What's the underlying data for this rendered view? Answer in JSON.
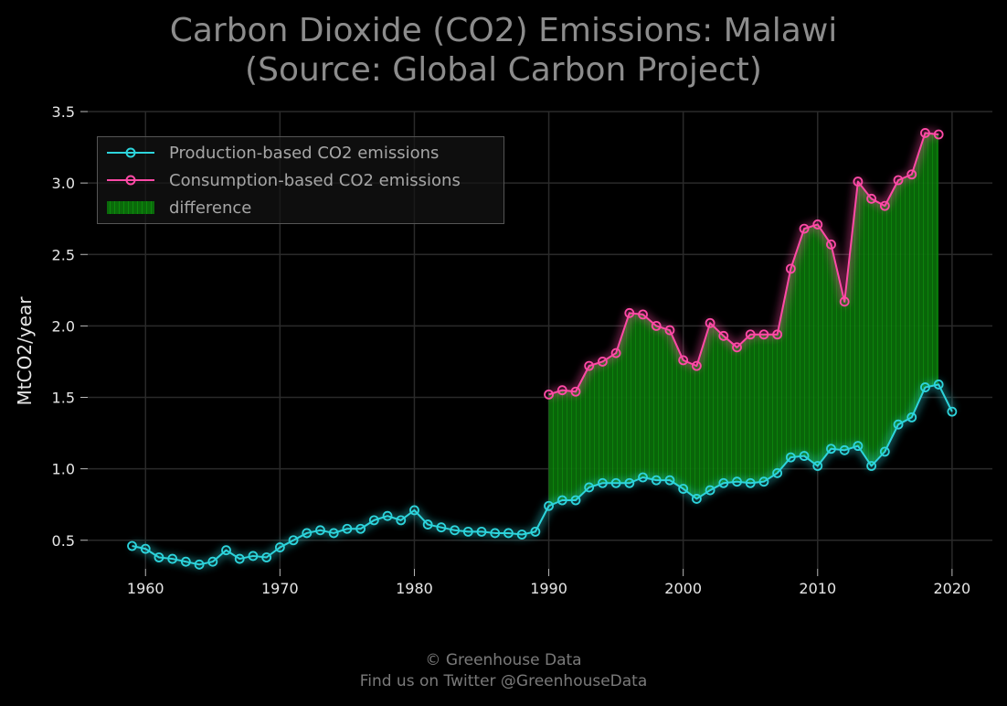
{
  "title_line1": "Carbon Dioxide (CO2) Emissions: Malawi",
  "title_line2": "(Source: Global Carbon Project)",
  "footer_line1": "© Greenhouse Data",
  "footer_line2": "Find us on Twitter @GreenhouseData",
  "colors": {
    "production": "#2dd4dc",
    "consumption": "#ff4aa6",
    "difference": "#0a7a0a",
    "grid": "#2a2a2a",
    "text": "#e6e6e6"
  },
  "legend": {
    "production": "Production-based CO2 emissions",
    "consumption": "Consumption-based CO2 emissions",
    "difference": "difference"
  },
  "chart_data": {
    "type": "line",
    "xlabel": "",
    "ylabel": "MtCO2/year",
    "xlim": [
      1955.7,
      2023
    ],
    "ylim": [
      0.3,
      3.5
    ],
    "xticks": [
      1960,
      1970,
      1980,
      1990,
      2000,
      2010,
      2020
    ],
    "yticks": [
      0.5,
      1.0,
      1.5,
      2.0,
      2.5,
      3.0,
      3.5
    ],
    "ytick_labels": [
      "0.5",
      "1.0",
      "1.5",
      "2.0",
      "2.5",
      "3.0",
      "3.5"
    ],
    "grid": true,
    "legend_position": "top-left",
    "series": [
      {
        "name": "Production-based CO2 emissions",
        "x": [
          1959,
          1960,
          1961,
          1962,
          1963,
          1964,
          1965,
          1966,
          1967,
          1968,
          1969,
          1970,
          1971,
          1972,
          1973,
          1974,
          1975,
          1976,
          1977,
          1978,
          1979,
          1980,
          1981,
          1982,
          1983,
          1984,
          1985,
          1986,
          1987,
          1988,
          1989,
          1990,
          1991,
          1992,
          1993,
          1994,
          1995,
          1996,
          1997,
          1998,
          1999,
          2000,
          2001,
          2002,
          2003,
          2004,
          2005,
          2006,
          2007,
          2008,
          2009,
          2010,
          2011,
          2012,
          2013,
          2014,
          2015,
          2016,
          2017,
          2018,
          2019,
          2020
        ],
        "values": [
          0.46,
          0.44,
          0.38,
          0.37,
          0.35,
          0.33,
          0.35,
          0.43,
          0.37,
          0.39,
          0.38,
          0.45,
          0.5,
          0.55,
          0.57,
          0.55,
          0.58,
          0.58,
          0.64,
          0.67,
          0.64,
          0.71,
          0.61,
          0.59,
          0.57,
          0.56,
          0.56,
          0.55,
          0.55,
          0.54,
          0.56,
          0.74,
          0.78,
          0.78,
          0.87,
          0.9,
          0.9,
          0.9,
          0.94,
          0.92,
          0.92,
          0.86,
          0.79,
          0.85,
          0.9,
          0.91,
          0.9,
          0.91,
          0.97,
          1.08,
          1.09,
          1.02,
          1.14,
          1.13,
          1.16,
          1.02,
          1.12,
          1.31,
          1.36,
          1.57,
          1.59,
          1.4
        ]
      },
      {
        "name": "Consumption-based CO2 emissions",
        "x": [
          1990,
          1991,
          1992,
          1993,
          1994,
          1995,
          1996,
          1997,
          1998,
          1999,
          2000,
          2001,
          2002,
          2003,
          2004,
          2005,
          2006,
          2007,
          2008,
          2009,
          2010,
          2011,
          2012,
          2013,
          2014,
          2015,
          2016,
          2017,
          2018,
          2019
        ],
        "values": [
          1.52,
          1.55,
          1.54,
          1.72,
          1.75,
          1.81,
          2.09,
          2.08,
          2.0,
          1.97,
          1.76,
          1.72,
          2.02,
          1.93,
          1.85,
          1.94,
          1.94,
          1.94,
          2.4,
          2.68,
          2.71,
          2.57,
          2.17,
          3.01,
          2.89,
          2.84,
          3.02,
          3.06,
          3.35,
          3.34
        ]
      }
    ]
  }
}
